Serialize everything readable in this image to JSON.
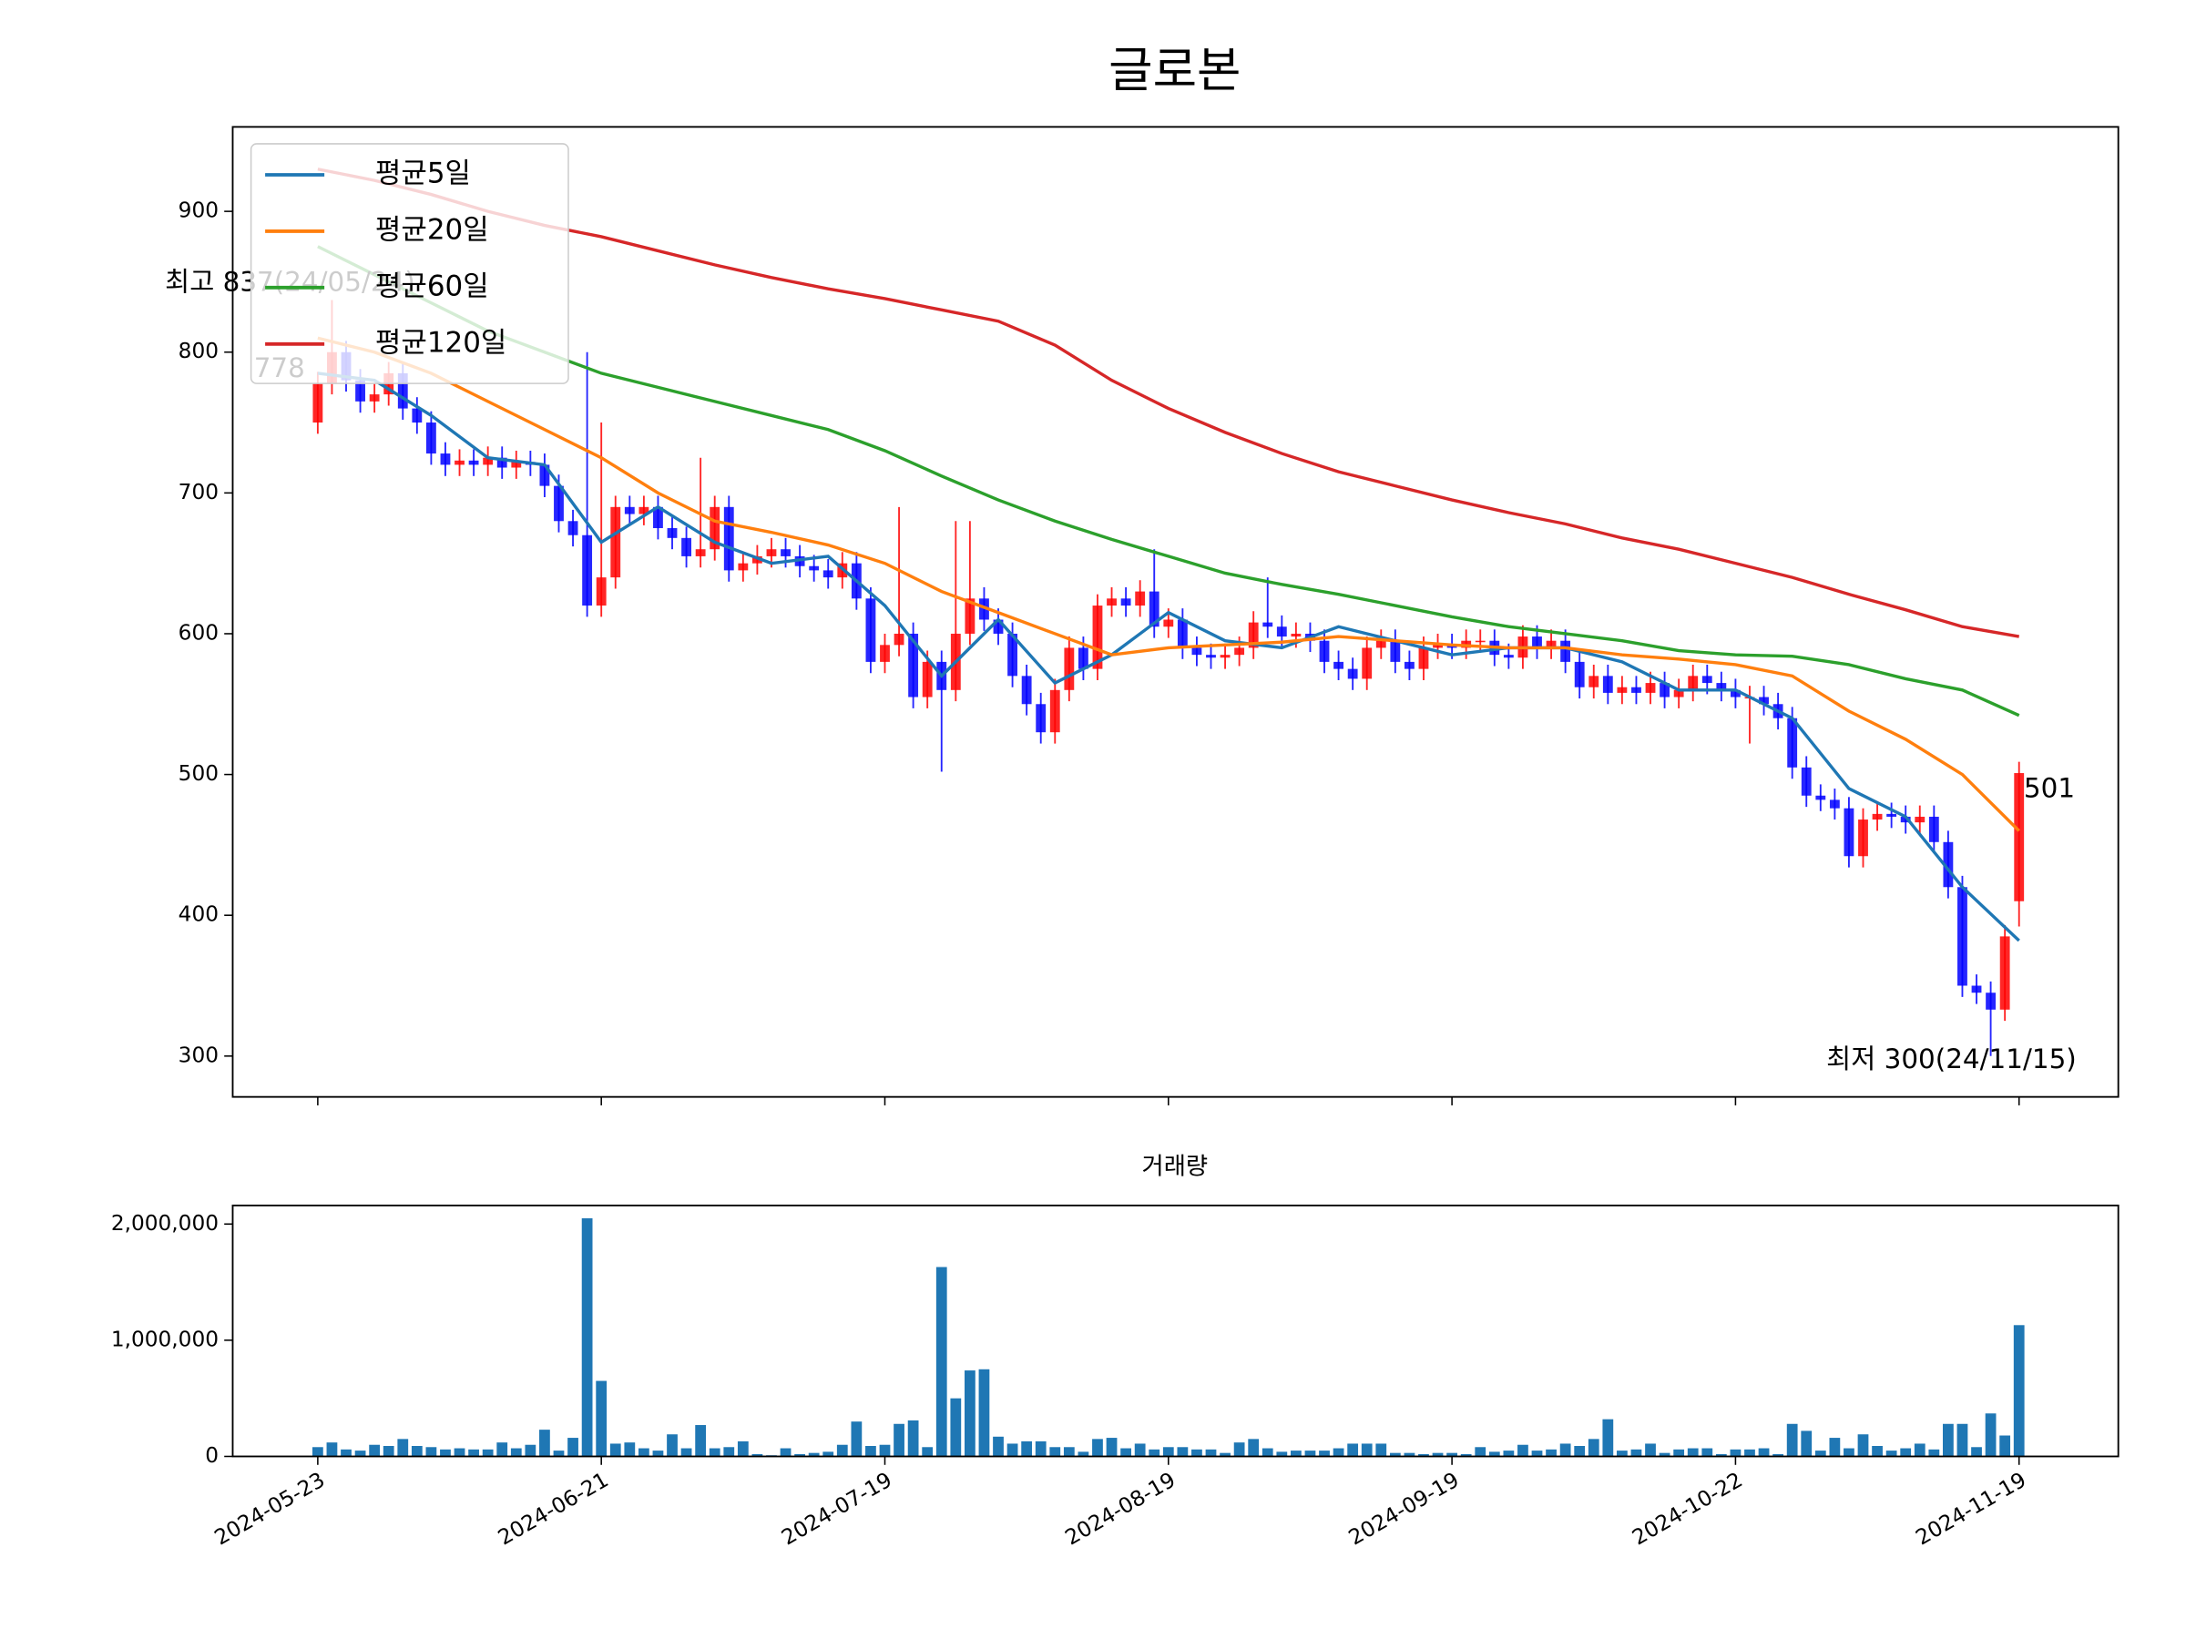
{
  "chart_data": [
    {
      "type": "candlestick",
      "title": "글로본",
      "up_color": "#ff0000",
      "down_color": "#0000ff",
      "open": [
        750,
        778,
        800,
        780,
        765,
        770,
        785,
        760,
        750,
        728,
        720,
        723,
        720,
        725,
        718,
        722,
        720,
        705,
        680,
        670,
        620,
        640,
        690,
        685,
        690,
        675,
        668,
        655,
        660,
        690,
        645,
        650,
        655,
        660,
        655,
        648,
        645,
        640,
        650,
        625,
        580,
        592,
        600,
        555,
        580,
        560,
        600,
        625,
        610,
        600,
        570,
        550,
        530,
        560,
        590,
        575,
        620,
        625,
        620,
        630,
        605,
        610,
        590,
        585,
        583,
        585,
        590,
        608,
        605,
        598,
        600,
        595,
        580,
        575,
        568,
        590,
        595,
        580,
        575,
        590,
        592,
        590,
        595,
        595,
        585,
        583,
        598,
        590,
        595,
        580,
        562,
        570,
        558,
        562,
        558,
        565,
        555,
        560,
        570,
        565,
        560,
        555,
        555,
        550,
        540,
        505,
        485,
        482,
        476,
        442,
        468,
        472,
        470,
        466,
        470,
        452,
        420,
        350,
        345,
        333,
        410
      ],
      "high": [
        786,
        837,
        808,
        788,
        778,
        793,
        793,
        768,
        758,
        736,
        731,
        731,
        733,
        733,
        730,
        730,
        728,
        713,
        688,
        800,
        750,
        698,
        698,
        698,
        698,
        683,
        676,
        725,
        698,
        698,
        658,
        663,
        668,
        668,
        663,
        656,
        653,
        658,
        658,
        633,
        600,
        690,
        608,
        588,
        588,
        680,
        680,
        633,
        618,
        608,
        578,
        558,
        568,
        598,
        598,
        628,
        633,
        633,
        638,
        660,
        618,
        618,
        598,
        593,
        593,
        598,
        616,
        640,
        613,
        608,
        608,
        603,
        588,
        583,
        598,
        603,
        603,
        588,
        598,
        600,
        600,
        603,
        603,
        603,
        593,
        606,
        606,
        603,
        603,
        588,
        578,
        578,
        570,
        570,
        573,
        573,
        568,
        578,
        578,
        573,
        568,
        563,
        563,
        558,
        548,
        513,
        493,
        490,
        484,
        476,
        480,
        480,
        478,
        478,
        478,
        460,
        428,
        358,
        353,
        393,
        509
      ],
      "low": [
        742,
        770,
        772,
        757,
        757,
        762,
        752,
        742,
        720,
        712,
        712,
        712,
        712,
        710,
        710,
        712,
        697,
        672,
        662,
        612,
        612,
        632,
        677,
        677,
        667,
        660,
        647,
        647,
        652,
        637,
        637,
        642,
        647,
        647,
        640,
        637,
        632,
        632,
        617,
        572,
        572,
        584,
        547,
        547,
        502,
        552,
        592,
        602,
        592,
        562,
        542,
        522,
        522,
        552,
        567,
        567,
        612,
        612,
        612,
        597,
        597,
        582,
        577,
        575,
        575,
        577,
        582,
        597,
        590,
        590,
        587,
        572,
        567,
        560,
        560,
        582,
        572,
        567,
        567,
        582,
        582,
        582,
        587,
        577,
        575,
        575,
        582,
        582,
        572,
        554,
        554,
        550,
        550,
        550,
        550,
        547,
        547,
        552,
        557,
        552,
        547,
        522,
        542,
        532,
        497,
        477,
        474,
        468,
        434,
        434,
        460,
        462,
        458,
        458,
        444,
        412,
        342,
        337,
        300,
        325,
        392
      ],
      "close": [
        778,
        800,
        780,
        765,
        770,
        785,
        760,
        750,
        728,
        720,
        723,
        720,
        725,
        718,
        722,
        720,
        705,
        680,
        670,
        620,
        640,
        690,
        685,
        690,
        675,
        668,
        655,
        660,
        690,
        645,
        650,
        655,
        660,
        655,
        648,
        645,
        640,
        650,
        625,
        580,
        592,
        600,
        555,
        580,
        560,
        600,
        625,
        610,
        600,
        570,
        550,
        530,
        560,
        590,
        575,
        620,
        625,
        620,
        630,
        605,
        610,
        590,
        585,
        583,
        585,
        590,
        608,
        605,
        598,
        600,
        595,
        580,
        575,
        568,
        590,
        595,
        580,
        575,
        590,
        592,
        590,
        595,
        595,
        585,
        583,
        598,
        590,
        595,
        580,
        562,
        570,
        558,
        562,
        558,
        565,
        555,
        560,
        570,
        565,
        560,
        555,
        555,
        550,
        540,
        505,
        485,
        482,
        476,
        442,
        468,
        472,
        470,
        466,
        470,
        452,
        420,
        350,
        345,
        333,
        385,
        501
      ],
      "line_x": [
        0,
        4,
        8,
        12,
        16,
        20,
        24,
        28,
        32,
        36,
        40,
        44,
        48,
        52,
        56,
        60,
        64,
        68,
        72,
        76,
        80,
        84,
        88,
        92,
        96,
        100,
        104,
        108,
        112,
        116,
        120
      ],
      "series": [
        {
          "name": "평균5일",
          "color": "#1f77b4",
          "values": [
            785,
            780,
            755,
            725,
            720,
            665,
            690,
            665,
            650,
            655,
            620,
            570,
            610,
            565,
            585,
            615,
            595,
            590,
            605,
            595,
            585,
            590,
            590,
            580,
            560,
            560,
            540,
            490,
            470,
            420,
            382
          ]
        },
        {
          "name": "평균20일",
          "color": "#ff7f0e",
          "values": [
            810,
            800,
            785,
            765,
            745,
            725,
            700,
            680,
            672,
            663,
            650,
            630,
            615,
            600,
            585,
            590,
            592,
            594,
            598,
            595,
            592,
            590,
            590,
            585,
            582,
            578,
            570,
            545,
            525,
            500,
            460
          ]
        },
        {
          "name": "평균60일",
          "color": "#2ca02c",
          "values": [
            875,
            855,
            835,
            815,
            800,
            785,
            775,
            765,
            755,
            745,
            730,
            712,
            695,
            680,
            667,
            655,
            643,
            635,
            628,
            620,
            612,
            605,
            600,
            595,
            588,
            585,
            584,
            578,
            568,
            560,
            542
          ]
        },
        {
          "name": "평균120일",
          "color": "#d62728",
          "values": [
            930,
            922,
            912,
            900,
            890,
            882,
            872,
            862,
            853,
            845,
            838,
            830,
            822,
            805,
            780,
            760,
            743,
            728,
            715,
            705,
            695,
            686,
            678,
            668,
            660,
            650,
            640,
            628,
            617,
            605,
            598
          ]
        }
      ],
      "annotations": [
        {
          "text": "최고 837(24/05/24)",
          "color": "#ff0000"
        },
        {
          "text": "최저 300(24/11/15)",
          "color": "#0000ff"
        },
        {
          "text": "778",
          "color": "#999999"
        },
        {
          "text": "501",
          "color": "#000000"
        }
      ],
      "legend": "upper left",
      "xlim": [
        -6,
        127
      ],
      "xticks": [
        0,
        20,
        40,
        60,
        80,
        100,
        120
      ],
      "ylim": [
        271,
        960
      ],
      "yticks": [
        300,
        400,
        500,
        600,
        700,
        800,
        900
      ]
    },
    {
      "type": "bar",
      "title": "거래량",
      "color": "#1f77b4",
      "values": [
        80000,
        120000,
        60000,
        50000,
        100000,
        90000,
        150000,
        90000,
        80000,
        60000,
        70000,
        60000,
        60000,
        120000,
        70000,
        100000,
        230000,
        50000,
        160000,
        2050000,
        650000,
        110000,
        120000,
        70000,
        50000,
        190000,
        70000,
        270000,
        70000,
        80000,
        130000,
        20000,
        10000,
        70000,
        20000,
        30000,
        40000,
        100000,
        300000,
        90000,
        100000,
        280000,
        310000,
        80000,
        1630000,
        500000,
        740000,
        750000,
        170000,
        110000,
        130000,
        130000,
        80000,
        80000,
        40000,
        150000,
        160000,
        70000,
        110000,
        60000,
        80000,
        80000,
        60000,
        60000,
        30000,
        120000,
        150000,
        70000,
        40000,
        50000,
        50000,
        50000,
        70000,
        110000,
        110000,
        110000,
        30000,
        30000,
        20000,
        30000,
        30000,
        20000,
        80000,
        40000,
        50000,
        100000,
        50000,
        60000,
        110000,
        90000,
        150000,
        320000,
        50000,
        60000,
        110000,
        30000,
        60000,
        70000,
        70000,
        20000,
        60000,
        60000,
        70000,
        20000,
        280000,
        220000,
        50000,
        160000,
        70000,
        190000,
        90000,
        50000,
        70000,
        110000,
        60000,
        280000,
        280000,
        80000,
        370000,
        180000,
        1130000
      ],
      "xlim": [
        -6,
        127
      ],
      "xticks": [
        {
          "value": 0,
          "label": "2024-05-23"
        },
        {
          "value": 20,
          "label": "2024-06-21"
        },
        {
          "value": 40,
          "label": "2024-07-19"
        },
        {
          "value": 60,
          "label": "2024-08-19"
        },
        {
          "value": 80,
          "label": "2024-09-19"
        },
        {
          "value": 100,
          "label": "2024-10-22"
        },
        {
          "value": 120,
          "label": "2024-11-19"
        }
      ],
      "ylim": [
        0,
        2160000
      ],
      "yticks": [
        0,
        {
          "value": 1000000,
          "label": "1,000,000"
        },
        {
          "value": 2000000,
          "label": "2,000,000"
        }
      ]
    }
  ]
}
